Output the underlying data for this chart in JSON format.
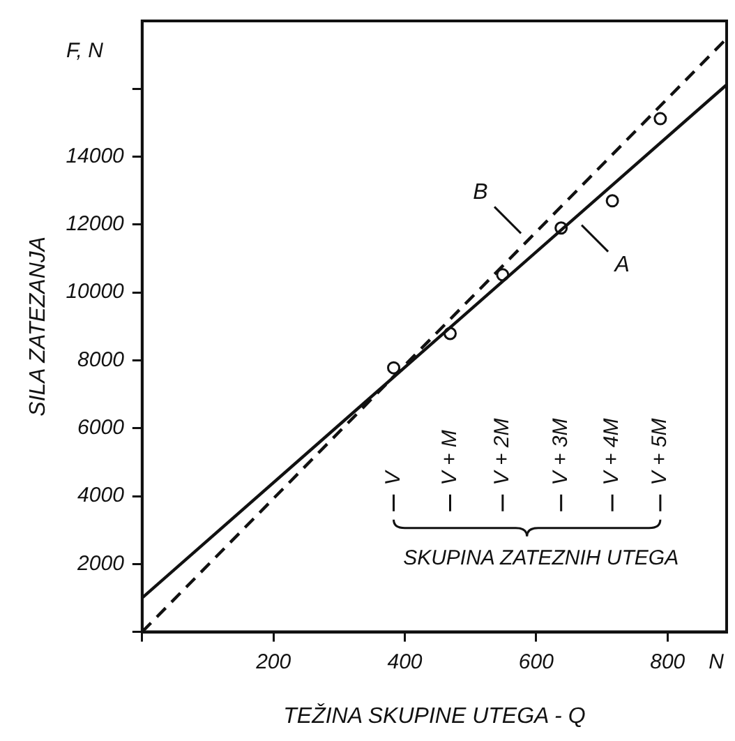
{
  "chart_data": {
    "type": "line",
    "xlabel": "TEŽINA SKUPINE UTEGA - Q",
    "ylabel": "SILA ZATEZANJA",
    "xlim": [
      0,
      890
    ],
    "xticks": [
      {
        "value": 0,
        "label": null
      },
      200,
      400,
      600,
      800
    ],
    "ylim": [
      0,
      18000
    ],
    "yticks": [
      {
        "value": 0,
        "label": null
      },
      2000,
      4000,
      6000,
      8000,
      10000,
      12000,
      14000,
      {
        "value": 16000,
        "label": null
      }
    ],
    "grid": false,
    "series": [
      {
        "name": "A",
        "color": "#111111",
        "line_style": "solid",
        "marker": "none",
        "x": [
          0,
          890
        ],
        "values": [
          1000,
          16120
        ]
      },
      {
        "name": "B",
        "color": "#111111",
        "line_style": "dashed",
        "marker": "none",
        "x": [
          0,
          890
        ],
        "values": [
          0,
          17480
        ]
      },
      {
        "type": "scatter",
        "color": "#111111",
        "marker": "circle",
        "x": [
          383,
          469,
          549,
          638,
          716,
          789
        ],
        "values": [
          7780,
          8790,
          10520,
          11900,
          12700,
          15120
        ]
      }
    ],
    "annotations": [
      "F, N",
      "N",
      "V",
      "V + M",
      "V + 2M",
      "V + 3M",
      "V + 4M",
      "V + 5M",
      "SKUPINA ZATEZNIH UTEGA"
    ]
  }
}
